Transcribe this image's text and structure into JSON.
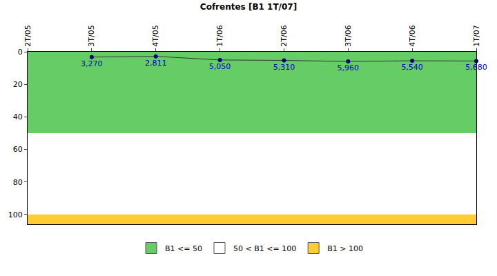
{
  "chart_data": {
    "type": "line",
    "title": "Cofrentes [B1 1T/07]",
    "categories": [
      "2T/05",
      "3T/05",
      "4T/05",
      "1T/06",
      "2T/06",
      "3T/06",
      "4T/06",
      "1T/07"
    ],
    "values": [
      null,
      3.27,
      2.811,
      5.05,
      5.31,
      5.96,
      5.54,
      5.68
    ],
    "value_labels": [
      null,
      "3,270",
      "2,811",
      "5,050",
      "5,310",
      "5,960",
      "5,540",
      "5,680"
    ],
    "data_labels": true,
    "color": "#333333",
    "marker": "circle",
    "ylim": [
      106,
      0
    ],
    "yticks": [
      0,
      20,
      40,
      60,
      80,
      100
    ],
    "grid": false,
    "legend": "bottom",
    "bands": [
      {
        "label": "B1 <= 50",
        "color": "#66cc66",
        "from": 0,
        "to": 50
      },
      {
        "label": "50 < B1 <= 100",
        "color": "#ffffff",
        "from": 50,
        "to": 100
      },
      {
        "label": "B1 > 100",
        "color": "#ffcc33",
        "from": 100,
        "to": 106
      }
    ]
  }
}
